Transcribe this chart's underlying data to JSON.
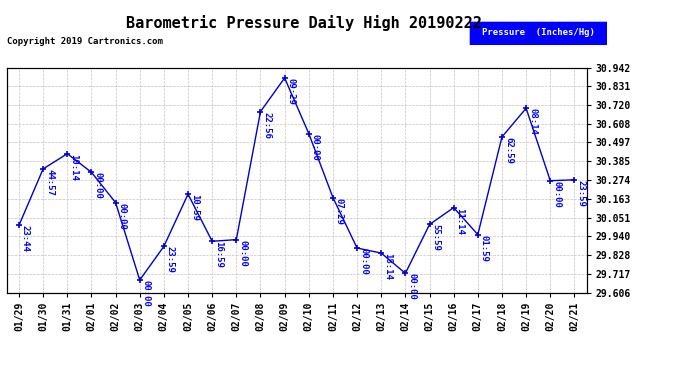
{
  "title": "Barometric Pressure Daily High 20190222",
  "copyright": "Copyright 2019 Cartronics.com",
  "legend_label": "Pressure  (Inches/Hg)",
  "x_labels": [
    "01/29",
    "01/30",
    "01/31",
    "02/01",
    "02/02",
    "02/03",
    "02/04",
    "02/05",
    "02/06",
    "02/07",
    "02/08",
    "02/09",
    "02/10",
    "02/11",
    "02/12",
    "02/13",
    "02/14",
    "02/15",
    "02/16",
    "02/17",
    "02/18",
    "02/19",
    "02/20",
    "02/21"
  ],
  "y_values": [
    30.005,
    30.34,
    30.43,
    30.32,
    30.14,
    29.68,
    29.88,
    30.19,
    29.91,
    29.92,
    30.68,
    30.88,
    30.55,
    30.17,
    29.87,
    29.84,
    29.72,
    30.01,
    30.11,
    29.95,
    30.53,
    30.7,
    30.27,
    30.275
  ],
  "time_labels": [
    "23:44",
    "44:57",
    "10:14",
    "00:00",
    "00:00",
    "00:00",
    "23:59",
    "10:59",
    "16:59",
    "00:00",
    "22:56",
    "09:29",
    "00:00",
    "07:29",
    "00:00",
    "18:14",
    "00:00",
    "55:59",
    "11:14",
    "01:59",
    "62:59",
    "08:14",
    "00:00",
    "23:59"
  ],
  "y_ticks": [
    29.606,
    29.717,
    29.828,
    29.94,
    30.051,
    30.163,
    30.274,
    30.385,
    30.497,
    30.608,
    30.72,
    30.831,
    30.942
  ],
  "line_color": "#0000CC",
  "marker_color": "#0000CC",
  "label_color": "#0000FF",
  "grid_color": "#AAAAAA",
  "bg_color": "#FFFFFF",
  "title_fontsize": 11,
  "label_fontsize": 6.5,
  "tick_fontsize": 7,
  "legend_box_color": "#0000FF",
  "legend_bg_color": "#0000FF"
}
